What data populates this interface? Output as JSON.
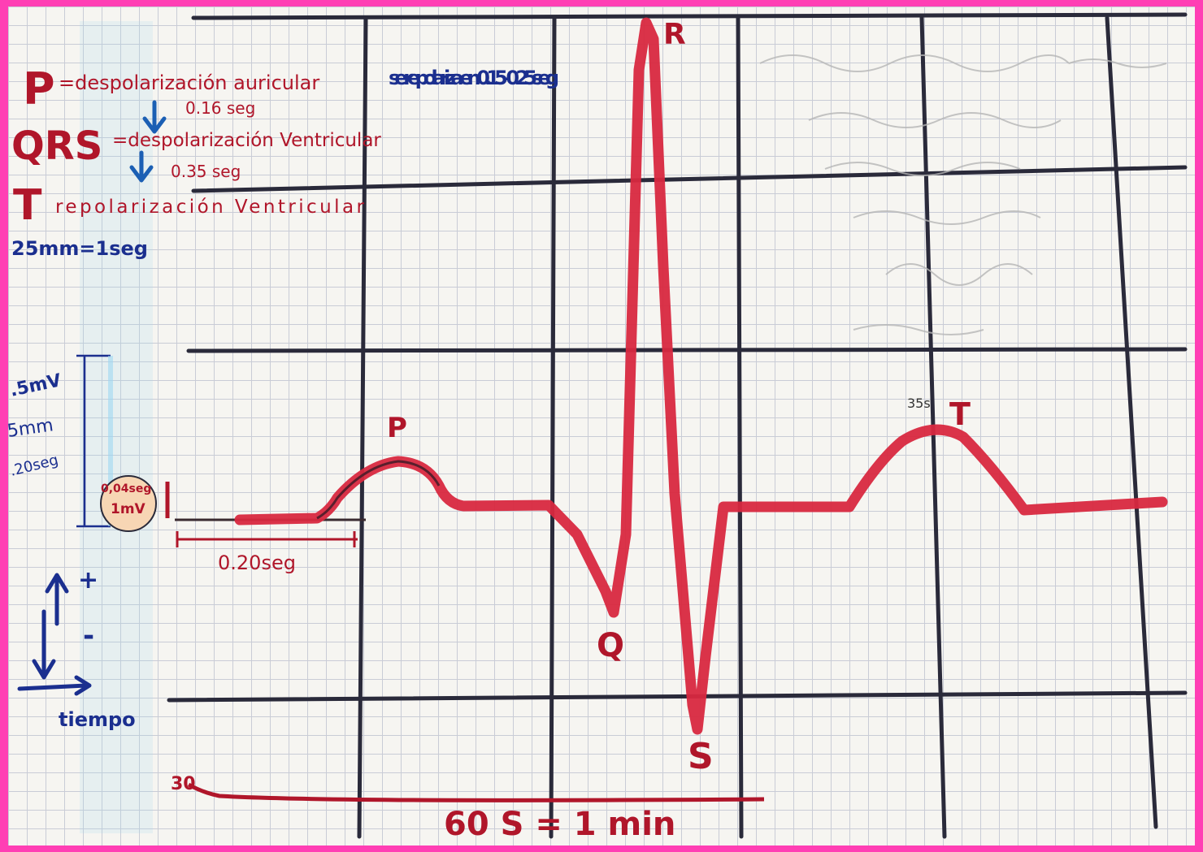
{
  "legend": {
    "p_label": "P",
    "p_text": "=despolarización auricular",
    "p_duration": "0.16 seg",
    "repol_note": "se repolariza en 0.15 -0.25seg",
    "qrs_label": "QRS",
    "qrs_text": "=despolarización Ventricular",
    "qrs_duration": "0.35 seg",
    "t_label": "T",
    "t_text": "repolarización Ventricular",
    "speed": "25mm=1seg"
  },
  "scale": {
    "voltage": ".5mV",
    "distance": "5mm",
    "time": ".20seg",
    "box_time": "0,04seg",
    "box_voltage": "1mV",
    "interval": "0.20seg",
    "axis_time": "tiempo",
    "plus": "+",
    "minus": "-"
  },
  "waves": {
    "p": "P",
    "q": "Q",
    "r": "R",
    "s": "S",
    "t": "T",
    "t_note": "35s"
  },
  "bottom": {
    "start": "30",
    "total": "60 S = 1 min"
  },
  "colors": {
    "paper": "#f6f5f1",
    "grid_minor": "#c9ccd6",
    "grid_major": "#2a2a3a",
    "ecg_red": "#d8283f",
    "ink_red": "#b0162a",
    "ink_blue": "#1b2f8f",
    "border": "#ff3fb4"
  }
}
